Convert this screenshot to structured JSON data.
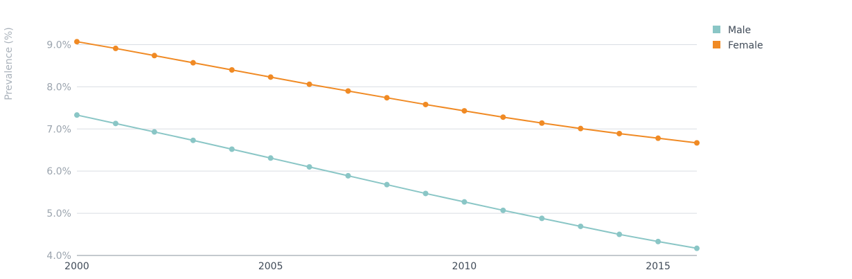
{
  "chart_data": {
    "type": "line",
    "ylabel": "Prevalence (%)",
    "xlabel": "",
    "x": [
      2000,
      2001,
      2002,
      2003,
      2004,
      2005,
      2006,
      2007,
      2008,
      2009,
      2010,
      2011,
      2012,
      2013,
      2014,
      2015,
      2016
    ],
    "xlim": [
      2000,
      2016
    ],
    "ylim": [
      4.0,
      9.5
    ],
    "x_ticks": [
      {
        "value": 2000,
        "label": "2000"
      },
      {
        "value": 2005,
        "label": "2005"
      },
      {
        "value": 2010,
        "label": "2010"
      },
      {
        "value": 2015,
        "label": "2015"
      }
    ],
    "y_ticks": [
      {
        "value": 4.0,
        "label": "4.0%"
      },
      {
        "value": 5.0,
        "label": "5.0%"
      },
      {
        "value": 6.0,
        "label": "6.0%"
      },
      {
        "value": 7.0,
        "label": "7.0%"
      },
      {
        "value": 8.0,
        "label": "8.0%"
      },
      {
        "value": 9.0,
        "label": "9.0%"
      }
    ],
    "grid": true,
    "legend_position": "top-right",
    "series": [
      {
        "name": "Male",
        "color": "#8ac6c6",
        "values": [
          7.33,
          7.13,
          6.93,
          6.73,
          6.52,
          6.31,
          6.1,
          5.89,
          5.68,
          5.47,
          5.27,
          5.07,
          4.88,
          4.69,
          4.5,
          4.33,
          4.17
        ]
      },
      {
        "name": "Female",
        "color": "#f08a24",
        "values": [
          9.07,
          8.91,
          8.74,
          8.57,
          8.4,
          8.23,
          8.06,
          7.9,
          7.74,
          7.58,
          7.43,
          7.28,
          7.14,
          7.01,
          6.89,
          6.78,
          6.67
        ]
      }
    ]
  }
}
